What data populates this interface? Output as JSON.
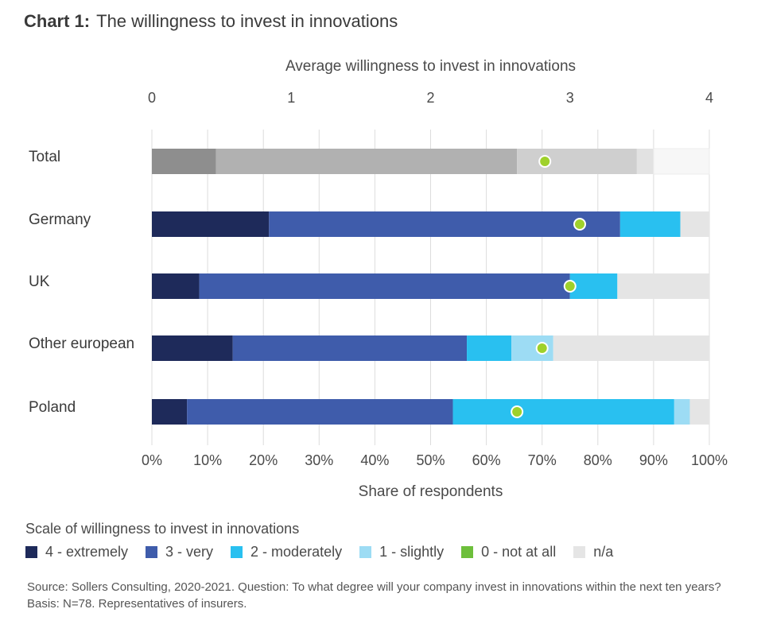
{
  "title": {
    "lead": "Chart 1:",
    "text": "The willingness to invest in innovations"
  },
  "legend": {
    "title": "Scale of willingness to invest in innovations",
    "items": [
      {
        "label": "4 - extremely",
        "color": "#1e2a5a"
      },
      {
        "label": "3 - very",
        "color": "#3f5cab"
      },
      {
        "label": "2 - moderately",
        "color": "#29c0f0"
      },
      {
        "label": "1 - slightly",
        "color": "#9ddcf4"
      },
      {
        "label": "0 - not at all",
        "color": "#6dbf3b"
      },
      {
        "label": "n/a",
        "color": "#e5e5e5"
      }
    ]
  },
  "source": "Source: Sollers Consulting, 2020-2021. Question: To what degree will your company invest in innovations within the next ten years? Basis: N=78. Representatives of insurers.",
  "chart_data": {
    "type": "bar",
    "orientation": "horizontal",
    "stacked": true,
    "categories": [
      "Total",
      "Germany",
      "UK",
      "Other european",
      "Poland"
    ],
    "xlabel": "Share of respondents",
    "xticks": [
      "0%",
      "10%",
      "20%",
      "30%",
      "40%",
      "50%",
      "60%",
      "70%",
      "80%",
      "90%",
      "100%"
    ],
    "xlim": [
      0,
      100
    ],
    "secondary_axis": {
      "label": "Average willingness to invest in innovations",
      "ticks": [
        "0",
        "1",
        "2",
        "3",
        "4"
      ],
      "lim": [
        0,
        4
      ]
    },
    "grid": true,
    "series": [
      {
        "name": "4 - extremely",
        "values": [
          11.5,
          21,
          8.5,
          14.5,
          6.3
        ]
      },
      {
        "name": "3 - very",
        "values": [
          54,
          63,
          66.5,
          42,
          47.7
        ]
      },
      {
        "name": "2 - moderately",
        "values": [
          21.5,
          10.8,
          8.5,
          8,
          39.7
        ]
      },
      {
        "name": "1 - slightly",
        "values": [
          3,
          0,
          0,
          7.5,
          2.8
        ]
      },
      {
        "name": "0 - not at all",
        "values": [
          0,
          0,
          0,
          0,
          0
        ]
      },
      {
        "name": "n/a",
        "values": [
          10,
          5.2,
          16.5,
          28,
          3.5
        ]
      }
    ],
    "average_willingness": [
      2.82,
      3.07,
      3.0,
      2.8,
      2.62
    ],
    "total_segment_colors": [
      "#8e8e8e",
      "#b1b1b1",
      "#cfcfcf",
      "#e2e2e2",
      "#6dbf3b",
      "#f7f7f7"
    ],
    "marker_color": "#9fd12b"
  }
}
